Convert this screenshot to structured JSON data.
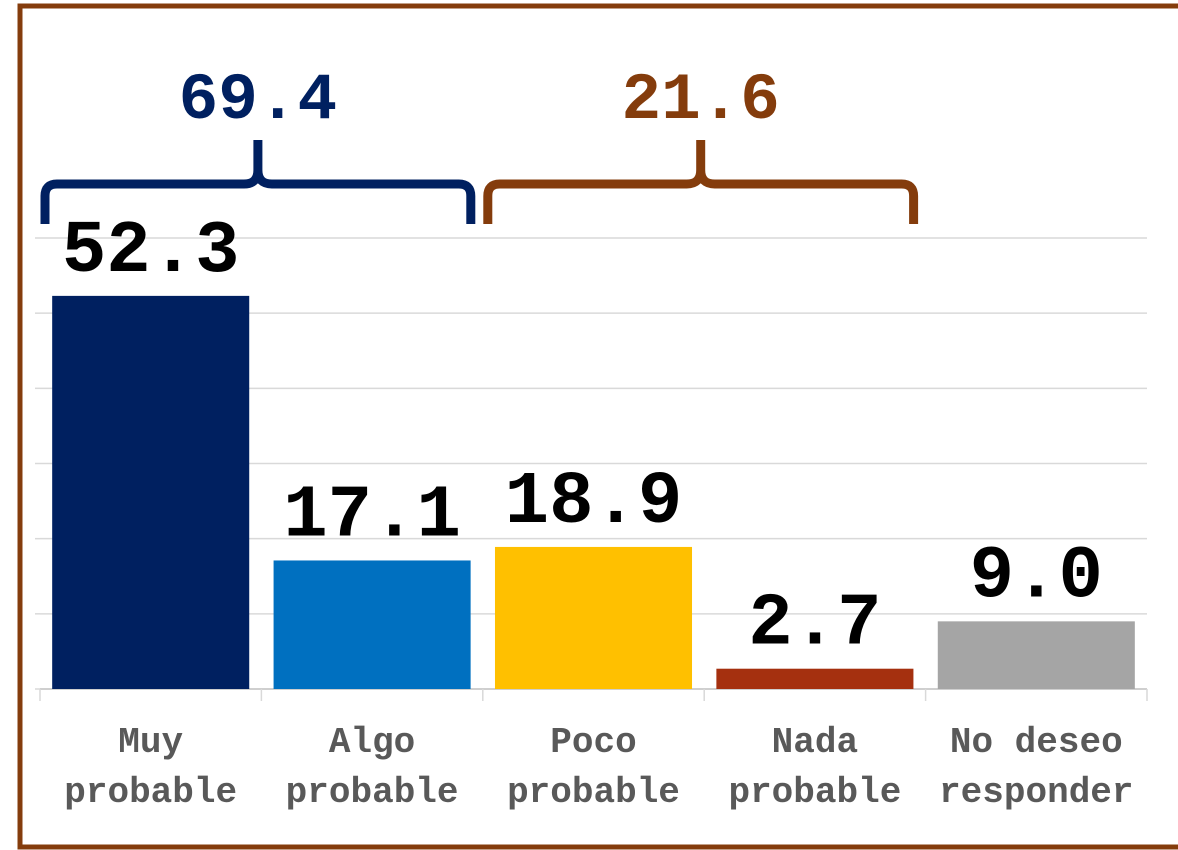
{
  "chart_data": {
    "type": "bar",
    "categories": [
      "Muy\nprobable",
      "Algo\nprobable",
      "Poco\nprobable",
      "Nada\nprobable",
      "No deseo\nresponder"
    ],
    "values": [
      52.3,
      17.1,
      18.9,
      2.7,
      9.0
    ],
    "value_labels": [
      "52.3",
      "17.1",
      "18.9",
      "2.7",
      "9.0"
    ],
    "colors": [
      "#002060",
      "#0070c0",
      "#ffc000",
      "#a5300f",
      "#a5a5a5"
    ],
    "ylim": [
      0,
      60
    ],
    "yticks": [
      0,
      10,
      20,
      30,
      40,
      50,
      60
    ],
    "grid": true,
    "annotations": [
      {
        "text": "69.4",
        "from": 0,
        "to": 1,
        "color": "#002060"
      },
      {
        "text": "21.6",
        "from": 2,
        "to": 3,
        "color": "#843c0c"
      }
    ]
  }
}
